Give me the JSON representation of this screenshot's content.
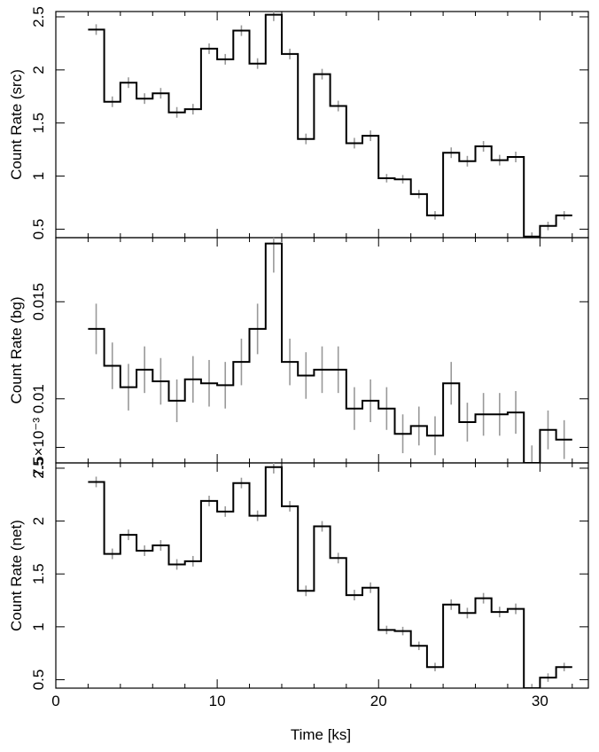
{
  "chart_data": {
    "type": "line",
    "xlabel": "Time [ks]",
    "xlim": [
      0,
      33
    ],
    "x_ticks": [
      "0",
      "10",
      "20",
      "30"
    ],
    "bin_edges": [
      2,
      3,
      4,
      5,
      6,
      7,
      8,
      9,
      10,
      11,
      12,
      13,
      14,
      15,
      16,
      17,
      18,
      19,
      20,
      21,
      22,
      23,
      24,
      25,
      26,
      27,
      28,
      29,
      30,
      31,
      32
    ],
    "colors": {
      "step": "#000000",
      "error_bar": "#999999"
    },
    "panels": [
      {
        "ylabel": "Count Rate (src)",
        "ylim": [
          0.42,
          2.55
        ],
        "y_ticks": [
          {
            "value": 0.5,
            "label": "0.5"
          },
          {
            "value": 1,
            "label": "1"
          },
          {
            "value": 1.5,
            "label": "1.5"
          },
          {
            "value": 2,
            "label": "2"
          },
          {
            "value": 2.5,
            "label": "2.5"
          }
        ],
        "values": [
          2.38,
          1.7,
          1.88,
          1.73,
          1.78,
          1.6,
          1.63,
          2.2,
          2.1,
          2.37,
          2.06,
          2.52,
          2.15,
          1.35,
          1.96,
          1.66,
          1.31,
          1.38,
          0.98,
          0.97,
          0.83,
          0.63,
          1.22,
          1.14,
          1.28,
          1.15,
          1.18,
          0.43,
          0.53,
          0.63
        ],
        "errors": [
          0.05,
          0.05,
          0.05,
          0.05,
          0.05,
          0.05,
          0.05,
          0.05,
          0.05,
          0.05,
          0.05,
          0.06,
          0.05,
          0.05,
          0.05,
          0.05,
          0.05,
          0.05,
          0.04,
          0.04,
          0.04,
          0.04,
          0.05,
          0.05,
          0.05,
          0.05,
          0.05,
          0.04,
          0.04,
          0.04
        ]
      },
      {
        "ylabel": "Count Rate (bg)",
        "ylim": [
          0.0067,
          0.0183
        ],
        "y_ticks": [
          {
            "value": 0.0075,
            "label": "7.5×10⁻³"
          },
          {
            "value": 0.01,
            "label": "0.01"
          },
          {
            "value": 0.015,
            "label": "0.015"
          }
        ],
        "values": [
          0.0136,
          0.0117,
          0.0106,
          0.0115,
          0.0109,
          0.0099,
          0.011,
          0.0108,
          0.0107,
          0.0119,
          0.0136,
          0.018,
          0.0119,
          0.0112,
          0.0115,
          0.0115,
          0.0095,
          0.0099,
          0.0095,
          0.0082,
          0.0086,
          0.0081,
          0.0108,
          0.0088,
          0.0092,
          0.0092,
          0.0093,
          0.0067,
          0.0084,
          0.0079
        ],
        "errors": [
          0.0013,
          0.0012,
          0.0012,
          0.0012,
          0.0012,
          0.0011,
          0.0012,
          0.0012,
          0.0012,
          0.0012,
          0.0013,
          0.0015,
          0.0012,
          0.0012,
          0.0012,
          0.0012,
          0.0011,
          0.0011,
          0.0011,
          0.001,
          0.001,
          0.001,
          0.0011,
          0.001,
          0.0011,
          0.0011,
          0.0011,
          0.0009,
          0.001,
          0.001
        ]
      },
      {
        "ylabel": "Count Rate (net)",
        "ylim": [
          0.42,
          2.55
        ],
        "y_ticks": [
          {
            "value": 0.5,
            "label": "0.5"
          },
          {
            "value": 1,
            "label": "1"
          },
          {
            "value": 1.5,
            "label": "1.5"
          },
          {
            "value": 2,
            "label": "2"
          },
          {
            "value": 2.5,
            "label": "2.5"
          }
        ],
        "values": [
          2.37,
          1.69,
          1.87,
          1.72,
          1.77,
          1.59,
          1.62,
          2.19,
          2.09,
          2.36,
          2.05,
          2.51,
          2.14,
          1.34,
          1.95,
          1.65,
          1.3,
          1.37,
          0.97,
          0.96,
          0.82,
          0.62,
          1.21,
          1.13,
          1.27,
          1.14,
          1.17,
          0.42,
          0.52,
          0.62
        ],
        "errors": [
          0.05,
          0.05,
          0.05,
          0.05,
          0.05,
          0.05,
          0.05,
          0.05,
          0.05,
          0.05,
          0.05,
          0.06,
          0.05,
          0.05,
          0.05,
          0.05,
          0.05,
          0.05,
          0.04,
          0.04,
          0.04,
          0.04,
          0.05,
          0.05,
          0.05,
          0.05,
          0.05,
          0.04,
          0.04,
          0.04
        ]
      }
    ]
  }
}
